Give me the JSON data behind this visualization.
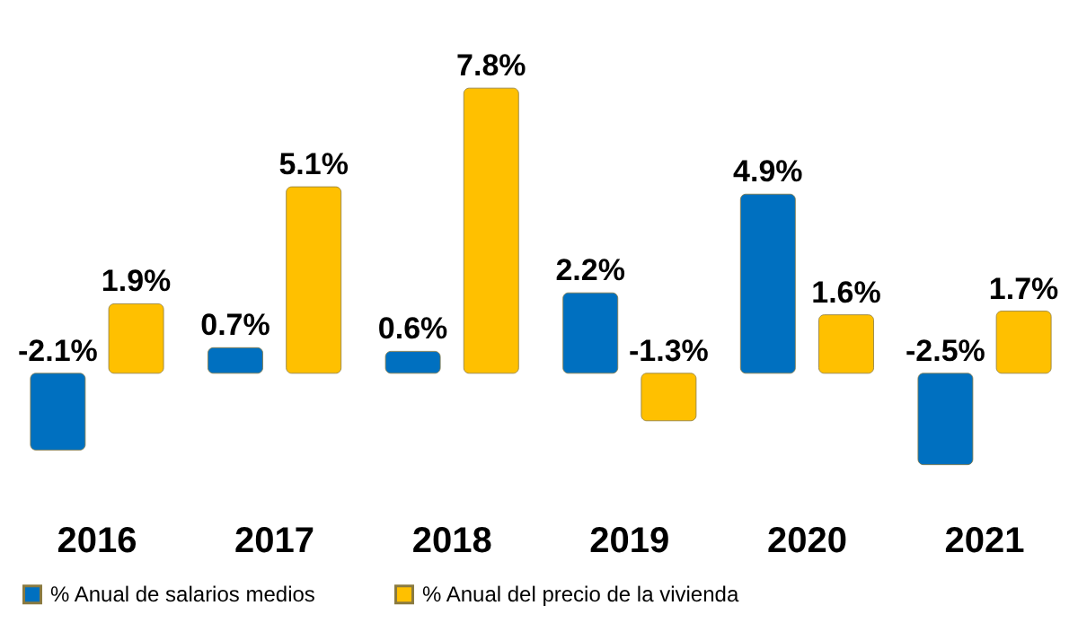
{
  "chart_data": {
    "type": "bar",
    "categories": [
      "2016",
      "2017",
      "2018",
      "2019",
      "2020",
      "2021"
    ],
    "series": [
      {
        "name": "% Anual de salarios medios",
        "color": "#0070c0",
        "values": [
          -2.1,
          0.7,
          0.6,
          2.2,
          4.9,
          -2.5
        ],
        "value_labels": [
          "-2.1%",
          "0.7%",
          "0.6%",
          "2.2%",
          "4.9%",
          "-2.5%"
        ]
      },
      {
        "name": "% Anual del precio de la vivienda",
        "color": "#ffc000",
        "values": [
          1.9,
          5.1,
          7.8,
          -1.3,
          1.6,
          1.7
        ],
        "value_labels": [
          "1.9%",
          "5.1%",
          "7.8%",
          "-1.3%",
          "1.6%",
          "1.7%"
        ]
      }
    ],
    "legend": "bottom",
    "tick_labels": "x"
  }
}
